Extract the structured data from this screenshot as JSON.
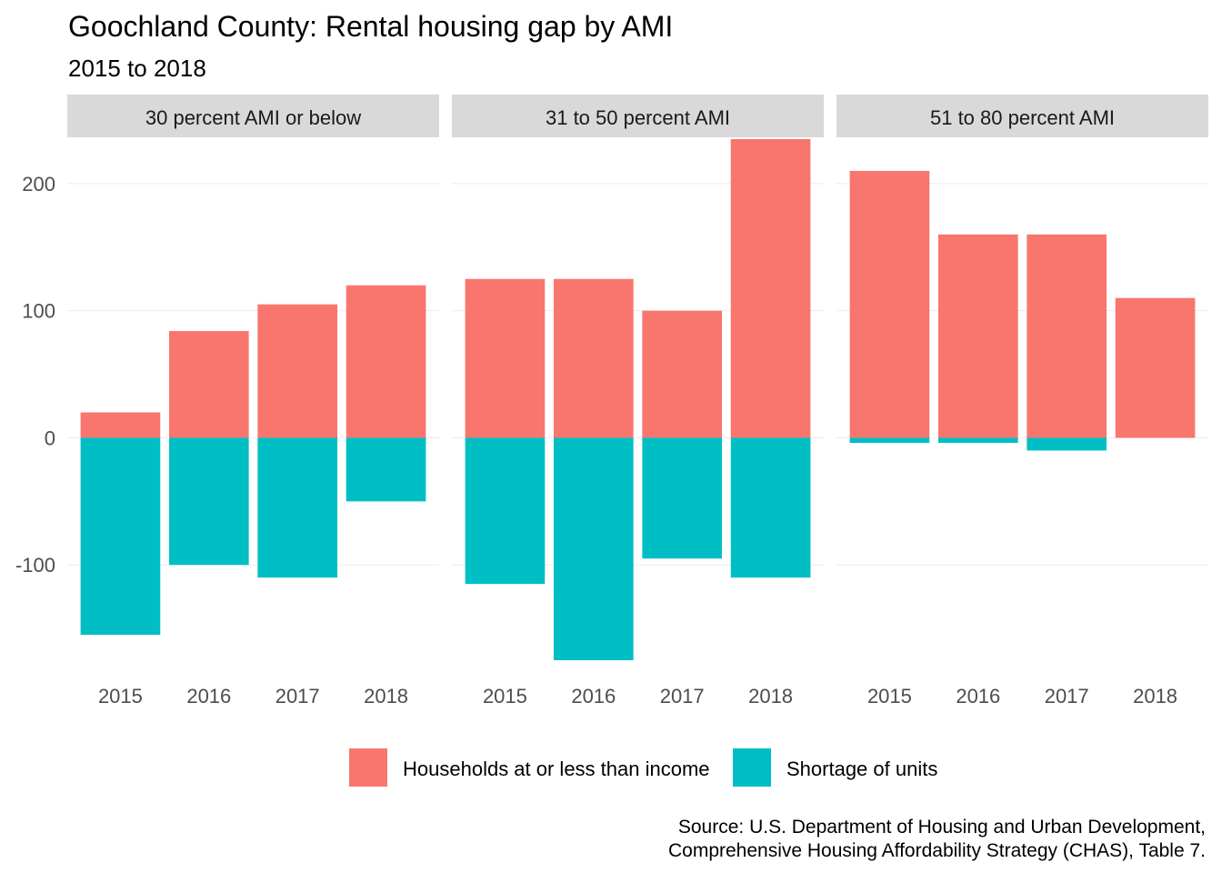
{
  "chart_data": {
    "type": "bar",
    "title": "Goochland County: Rental housing gap by AMI",
    "subtitle": "2015 to 2018",
    "caption_lines": [
      "Source: U.S. Department of Housing and Urban Development,",
      "Comprehensive Housing Affordability Strategy (CHAS), Table 7."
    ],
    "categories": [
      "2015",
      "2016",
      "2017",
      "2018"
    ],
    "ylim": [
      -185,
      235
    ],
    "yticks": [
      -100,
      0,
      100,
      200
    ],
    "grid": true,
    "legend_position": "bottom",
    "colors": {
      "households": "#F8766D",
      "shortage": "#00BFC4"
    },
    "legend": [
      {
        "key": "households",
        "label": "Households at or less than income"
      },
      {
        "key": "shortage",
        "label": "Shortage of units"
      }
    ],
    "panels": [
      {
        "label": "30 percent AMI or below",
        "series": [
          {
            "name": "Households at or less than income",
            "key": "households",
            "values": [
              20,
              84,
              105,
              120
            ]
          },
          {
            "name": "Shortage of units",
            "key": "shortage",
            "values": [
              -155,
              -100,
              -110,
              -50
            ]
          }
        ]
      },
      {
        "label": "31 to 50 percent AMI",
        "series": [
          {
            "name": "Households at or less than income",
            "key": "households",
            "values": [
              125,
              125,
              100,
              235
            ]
          },
          {
            "name": "Shortage of units",
            "key": "shortage",
            "values": [
              -115,
              -175,
              -95,
              -110
            ]
          }
        ]
      },
      {
        "label": "51 to 80 percent AMI",
        "series": [
          {
            "name": "Households at or less than income",
            "key": "households",
            "values": [
              210,
              160,
              160,
              110
            ]
          },
          {
            "name": "Shortage of units",
            "key": "shortage",
            "values": [
              -4,
              -4,
              -10,
              0
            ]
          }
        ]
      }
    ]
  }
}
